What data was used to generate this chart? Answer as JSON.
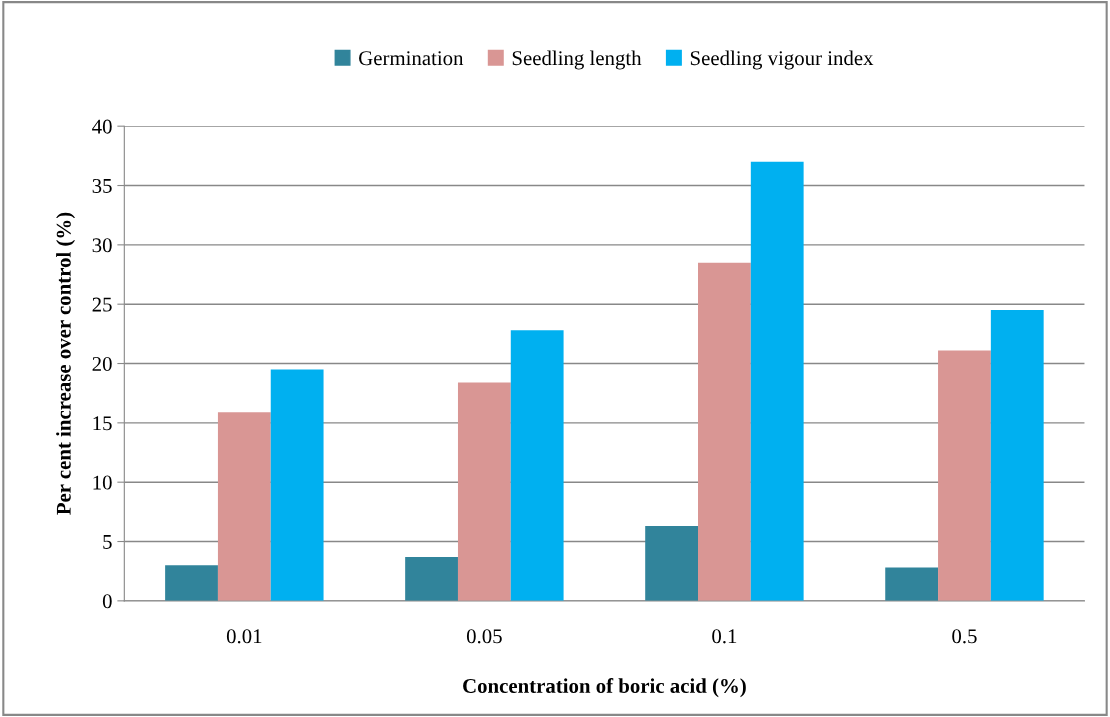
{
  "chart_data": {
    "type": "bar",
    "xlabel": "Concentration of boric acid (%)",
    "ylabel": "Per cent increase over control (%)",
    "categories": [
      "0.01",
      "0.05",
      "0.1",
      "0.5"
    ],
    "series": [
      {
        "name": "Germination",
        "color": "#31849b",
        "values": [
          3.0,
          3.7,
          6.3,
          2.8
        ]
      },
      {
        "name": "Seedling length",
        "color": "#d99694",
        "values": [
          15.9,
          18.4,
          28.5,
          21.1
        ]
      },
      {
        "name": "Seedling vigour index",
        "color": "#00b0f0",
        "values": [
          19.5,
          22.8,
          37.0,
          24.5
        ]
      }
    ],
    "ylim": [
      0,
      40
    ],
    "yticks": [
      0,
      5,
      10,
      15,
      20,
      25,
      30,
      35,
      40
    ],
    "grid": "y",
    "legend": "top"
  }
}
